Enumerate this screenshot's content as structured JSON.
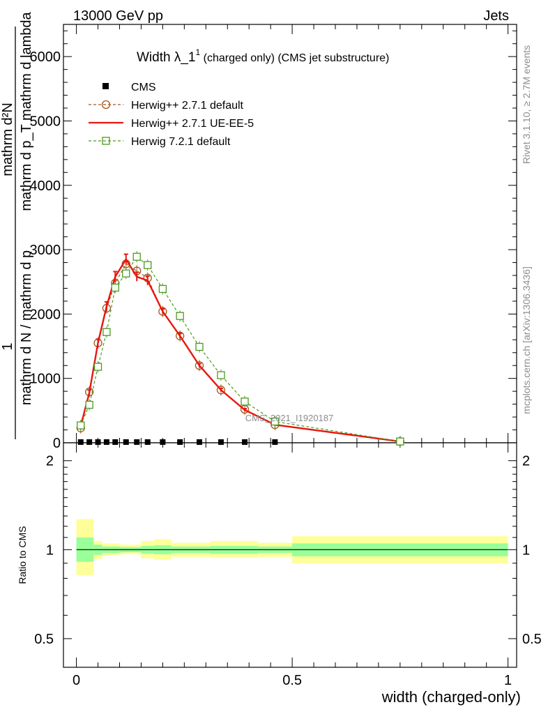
{
  "header": {
    "left": "13000 GeV pp",
    "right": "Jets"
  },
  "side_labels": {
    "rivet": "Rivet 3.1.10, ≥ 2.7M events",
    "mcplots": "mcplots.cern.ch [arXiv:1306.3436]"
  },
  "watermark": "CMS_2021_I1920187",
  "colors": {
    "cms": "#000000",
    "herwig_default": "#a0581e",
    "herwig_ueee5": "#e8160f",
    "herwig72": "#4a9a1e",
    "band_inner": "#99ff99",
    "band_outer": "#ffff99"
  },
  "chart_data": [
    {
      "type": "line",
      "title_main": "Width λ_1",
      "title_sup": "1",
      "title_suffix": " (charged only) (CMS jet substructure)",
      "ylabel_top": "1",
      "ylabel_frac_top": "mathrm d²N",
      "ylabel_frac_mid": "mathrm d p_T mathrm d lambda",
      "ylabel_bottom_line1": "mathrm d N / mathrm d p",
      "ylabel_bottom_line2": "mathrm d p_T mathrm d lambda",
      "ylabel_full": "1 / (mathrm d N / mathrm d p_T) · mathrm d²N / (mathrm d p_T mathrm d lambda)",
      "xlim": [
        -0.03,
        1.02
      ],
      "ylim": [
        0,
        6500
      ],
      "yticks": [
        0,
        1000,
        2000,
        3000,
        4000,
        5000,
        6000
      ],
      "ytick_labels": [
        "0",
        "1000",
        "2000",
        "3000",
        "4000",
        "5000",
        "6000"
      ],
      "legend": [
        {
          "key": "cms",
          "label": "CMS"
        },
        {
          "key": "herwig_default",
          "label": "Herwig++ 2.7.1 default"
        },
        {
          "key": "herwig_ueee5",
          "label": "Herwig++ 2.7.1 UE-EE-5"
        },
        {
          "key": "herwig72",
          "label": "Herwig 7.2.1 default"
        }
      ],
      "series": [
        {
          "key": "cms",
          "name": "CMS",
          "style": "points",
          "x": [
            0.01,
            0.03,
            0.05,
            0.07,
            0.09,
            0.115,
            0.14,
            0.165,
            0.2,
            0.24,
            0.285,
            0.335,
            0.39,
            0.46
          ],
          "y": [
            0,
            0,
            0,
            0,
            0,
            0,
            0,
            0,
            0,
            0,
            0,
            0,
            0,
            0
          ]
        },
        {
          "key": "herwig_default",
          "name": "Herwig++ 2.7.1 default",
          "style": "dashed-circle",
          "x": [
            0.01,
            0.03,
            0.05,
            0.07,
            0.09,
            0.115,
            0.14,
            0.165,
            0.2,
            0.24,
            0.285,
            0.335,
            0.39,
            0.46,
            0.75
          ],
          "y": [
            230,
            790,
            1550,
            2090,
            2480,
            2780,
            2670,
            2560,
            2040,
            1660,
            1200,
            820,
            520,
            280,
            20
          ]
        },
        {
          "key": "herwig_ueee5",
          "name": "Herwig++ 2.7.1 UE-EE-5",
          "style": "solid",
          "x": [
            0.01,
            0.03,
            0.05,
            0.07,
            0.09,
            0.115,
            0.14,
            0.165,
            0.2,
            0.24,
            0.285,
            0.335,
            0.39,
            0.46,
            0.75
          ],
          "y": [
            260,
            780,
            1550,
            2120,
            2580,
            2850,
            2580,
            2520,
            2040,
            1660,
            1200,
            820,
            510,
            280,
            20
          ],
          "errors": [
            30,
            40,
            60,
            70,
            80,
            80,
            70,
            70,
            40,
            40,
            30,
            25,
            20,
            15,
            5
          ]
        },
        {
          "key": "herwig72",
          "name": "Herwig 7.2.1 default",
          "style": "dashed-square",
          "x": [
            0.01,
            0.03,
            0.05,
            0.07,
            0.09,
            0.115,
            0.14,
            0.165,
            0.2,
            0.24,
            0.285,
            0.335,
            0.39,
            0.46,
            0.75
          ],
          "y": [
            270,
            590,
            1180,
            1720,
            2410,
            2630,
            2890,
            2760,
            2390,
            1970,
            1490,
            1050,
            640,
            330,
            20
          ]
        }
      ]
    },
    {
      "type": "area",
      "ylabel": "Ratio to CMS",
      "xlabel": "width (charged-only)",
      "xlim": [
        -0.03,
        1.02
      ],
      "ylim": [
        0.4,
        2.3
      ],
      "yscale": "log",
      "xticks": [
        0,
        0.5,
        1
      ],
      "xtick_labels": [
        "0",
        "0.5",
        "1"
      ],
      "yticks": [
        0.5,
        1,
        2
      ],
      "ytick_labels": [
        "0.5",
        "1",
        "2"
      ],
      "reference": 1,
      "bins": [
        {
          "x0": 0.0,
          "x1": 0.04,
          "inner": [
            0.91,
            1.1
          ],
          "outer": [
            0.82,
            1.27
          ]
        },
        {
          "x0": 0.04,
          "x1": 0.06,
          "inner": [
            0.96,
            1.04
          ],
          "outer": [
            0.93,
            1.07
          ]
        },
        {
          "x0": 0.06,
          "x1": 0.08,
          "inner": [
            0.975,
            1.025
          ],
          "outer": [
            0.955,
            1.05
          ]
        },
        {
          "x0": 0.08,
          "x1": 0.1,
          "inner": [
            0.975,
            1.025
          ],
          "outer": [
            0.955,
            1.05
          ]
        },
        {
          "x0": 0.1,
          "x1": 0.13,
          "inner": [
            0.98,
            1.02
          ],
          "outer": [
            0.965,
            1.04
          ]
        },
        {
          "x0": 0.13,
          "x1": 0.15,
          "inner": [
            0.98,
            1.02
          ],
          "outer": [
            0.965,
            1.04
          ]
        },
        {
          "x0": 0.15,
          "x1": 0.18,
          "inner": [
            0.97,
            1.03
          ],
          "outer": [
            0.935,
            1.07
          ]
        },
        {
          "x0": 0.18,
          "x1": 0.22,
          "inner": [
            0.965,
            1.035
          ],
          "outer": [
            0.925,
            1.085
          ]
        },
        {
          "x0": 0.22,
          "x1": 0.26,
          "inner": [
            0.975,
            1.025
          ],
          "outer": [
            0.945,
            1.055
          ]
        },
        {
          "x0": 0.26,
          "x1": 0.31,
          "inner": [
            0.975,
            1.025
          ],
          "outer": [
            0.945,
            1.055
          ]
        },
        {
          "x0": 0.31,
          "x1": 0.36,
          "inner": [
            0.97,
            1.03
          ],
          "outer": [
            0.94,
            1.07
          ]
        },
        {
          "x0": 0.36,
          "x1": 0.42,
          "inner": [
            0.97,
            1.03
          ],
          "outer": [
            0.94,
            1.07
          ]
        },
        {
          "x0": 0.42,
          "x1": 0.5,
          "inner": [
            0.975,
            1.025
          ],
          "outer": [
            0.945,
            1.055
          ]
        },
        {
          "x0": 0.5,
          "x1": 1.0,
          "inner": [
            0.95,
            1.05
          ],
          "outer": [
            0.9,
            1.11
          ]
        }
      ]
    }
  ]
}
